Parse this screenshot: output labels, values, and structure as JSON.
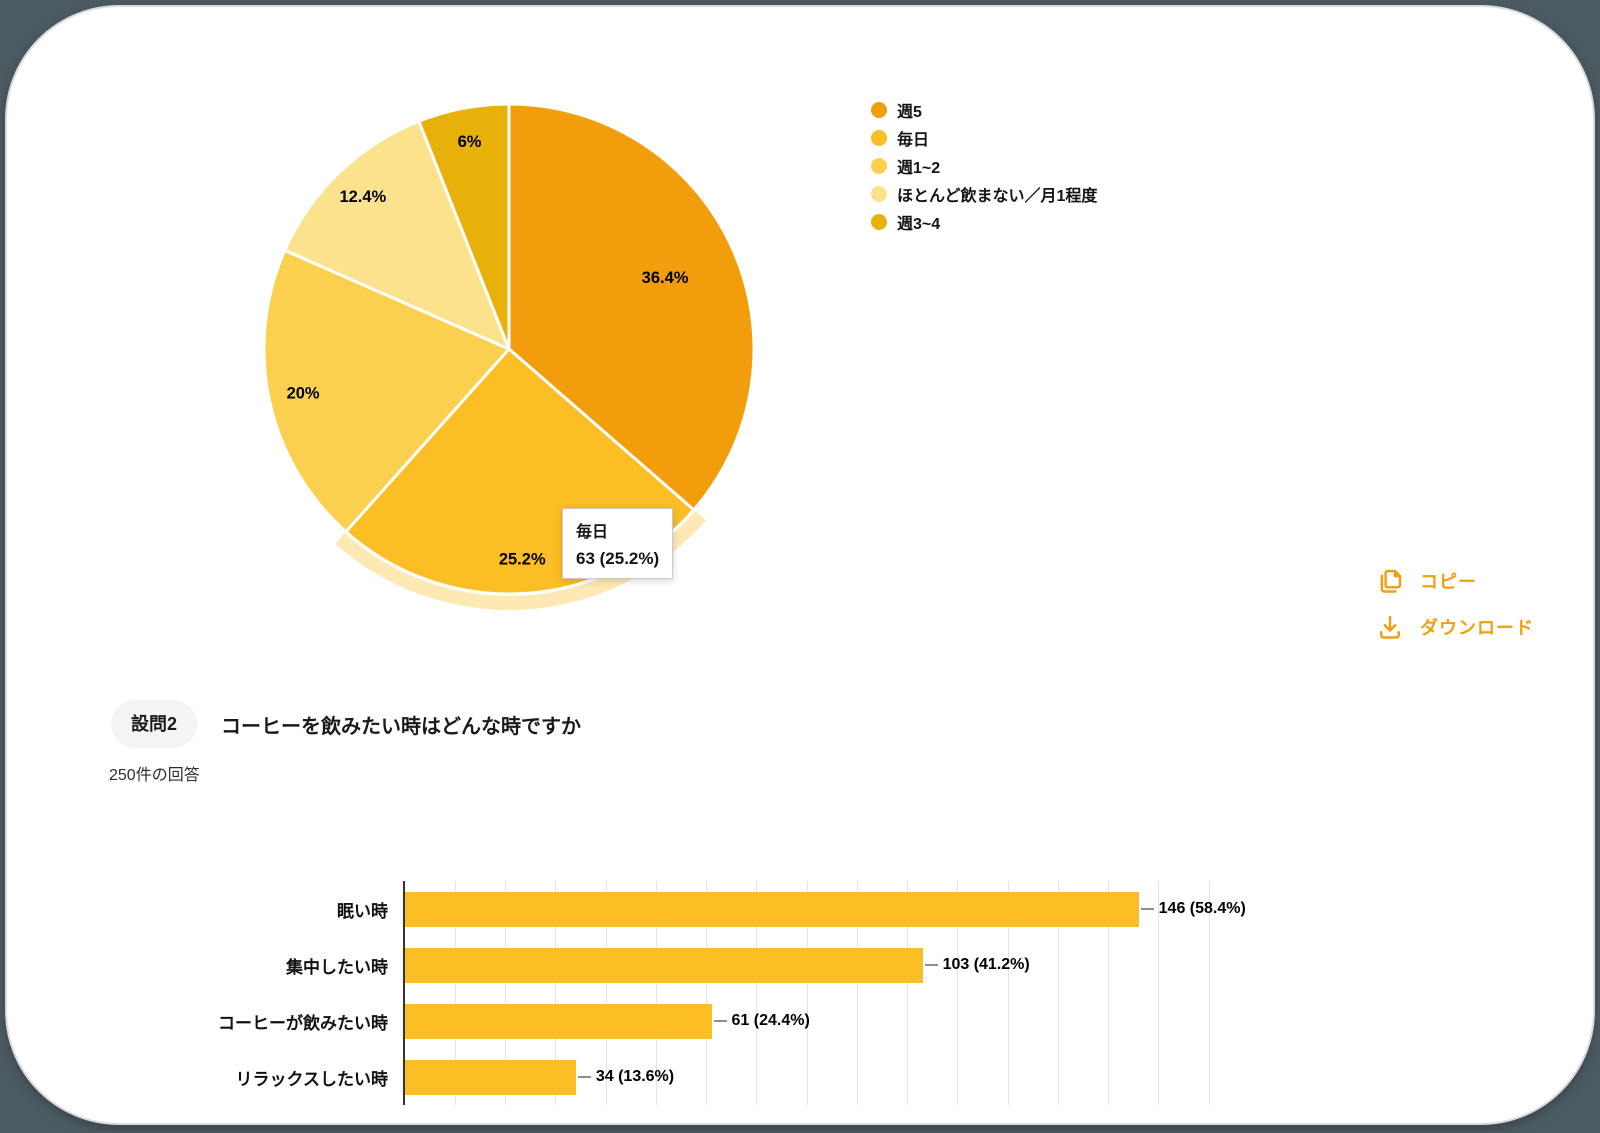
{
  "page": {
    "background_color": "#4C5B62",
    "card_border_color": "#D8DADE"
  },
  "tooltip": {
    "note": "hover tooltip shown on pie slice"
  },
  "actions": {
    "copy_label": "コピー",
    "download_label": "ダウンロード",
    "accent_color": "#F39E0C"
  },
  "question": {
    "badge": "設問2",
    "title": "コーヒーを飲みたい時はどんな時ですか",
    "response_count": "250件の回答"
  },
  "chart_data": [
    {
      "type": "pie",
      "categories": [
        "週5",
        "毎日",
        "週1~2",
        "ほとんど飲まない／月1程度",
        "週3~4"
      ],
      "values": [
        36.4,
        25.2,
        20,
        12.4,
        6
      ],
      "unit": "percent",
      "slice_labels": [
        "36.4%",
        "25.2%",
        "20%",
        "12.4%",
        "6%"
      ],
      "colors": [
        "#F29D0B",
        "#FBBE24",
        "#FBD04E",
        "#FCE28C",
        "#E8B10A"
      ],
      "start_angle": "12-oclock",
      "direction": "clockwise",
      "legend_position": "right",
      "highlighted_category": "毎日",
      "tooltip": {
        "category": "毎日",
        "text": "63 (25.2%)"
      }
    },
    {
      "type": "bar",
      "orientation": "horizontal",
      "categories": [
        "眠い時",
        "集中したい時",
        "コーヒーが飲みたい時",
        "リラックスしたい時"
      ],
      "values": [
        146,
        103,
        61,
        34
      ],
      "value_labels": [
        "146 (58.4%)",
        "103 (41.2%)",
        "61 (24.4%)",
        "34 (13.6%)"
      ],
      "bar_color": "#FBBE24",
      "xlim": [
        0,
        160
      ],
      "grid_step": 10,
      "grid": true,
      "xlabel": "",
      "ylabel": ""
    }
  ]
}
